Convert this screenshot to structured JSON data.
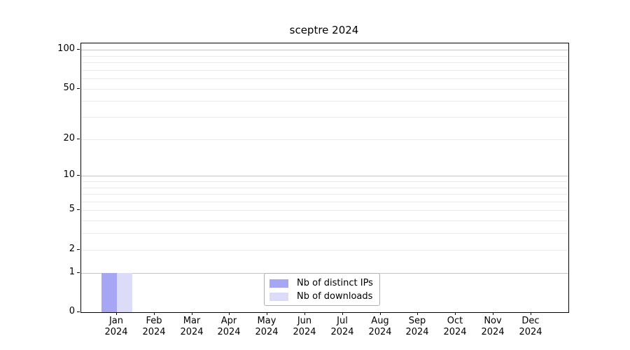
{
  "title": "sceptre 2024",
  "chart_data": {
    "type": "bar",
    "title": "sceptre 2024",
    "categories": [
      "Jan",
      "Feb",
      "Mar",
      "Apr",
      "May",
      "Jun",
      "Jul",
      "Aug",
      "Sep",
      "Oct",
      "Nov",
      "Dec"
    ],
    "year_label": "2024",
    "series": [
      {
        "name": "Nb of distinct IPs",
        "color": "#a6a6f5",
        "values": [
          1,
          0,
          0,
          0,
          0,
          0,
          0,
          0,
          0,
          0,
          0,
          0
        ]
      },
      {
        "name": "Nb of downloads",
        "color": "#dcdcf8",
        "values": [
          1,
          0,
          0,
          0,
          0,
          0,
          0,
          0,
          0,
          0,
          0,
          0
        ]
      }
    ],
    "y_scale": "log10(1+v)",
    "ylim": [
      0,
      112
    ],
    "y_ticks": [
      0,
      1,
      2,
      5,
      10,
      20,
      50,
      100
    ],
    "y_major_gridlines": [
      1,
      10,
      100
    ],
    "y_minor_gridlines": [
      2,
      3,
      4,
      5,
      6,
      7,
      8,
      9,
      20,
      30,
      40,
      50,
      60,
      70,
      80,
      90
    ],
    "grid": "horizontal only",
    "legend_position": "lower center",
    "xlabel": "",
    "ylabel": ""
  },
  "colors": {
    "spine": "#000000",
    "major_grid": "#c7c7c7",
    "minor_grid": "#ebebeb",
    "legend_border": "#b0b0b0",
    "background": "#ffffff",
    "text": "#000000"
  }
}
